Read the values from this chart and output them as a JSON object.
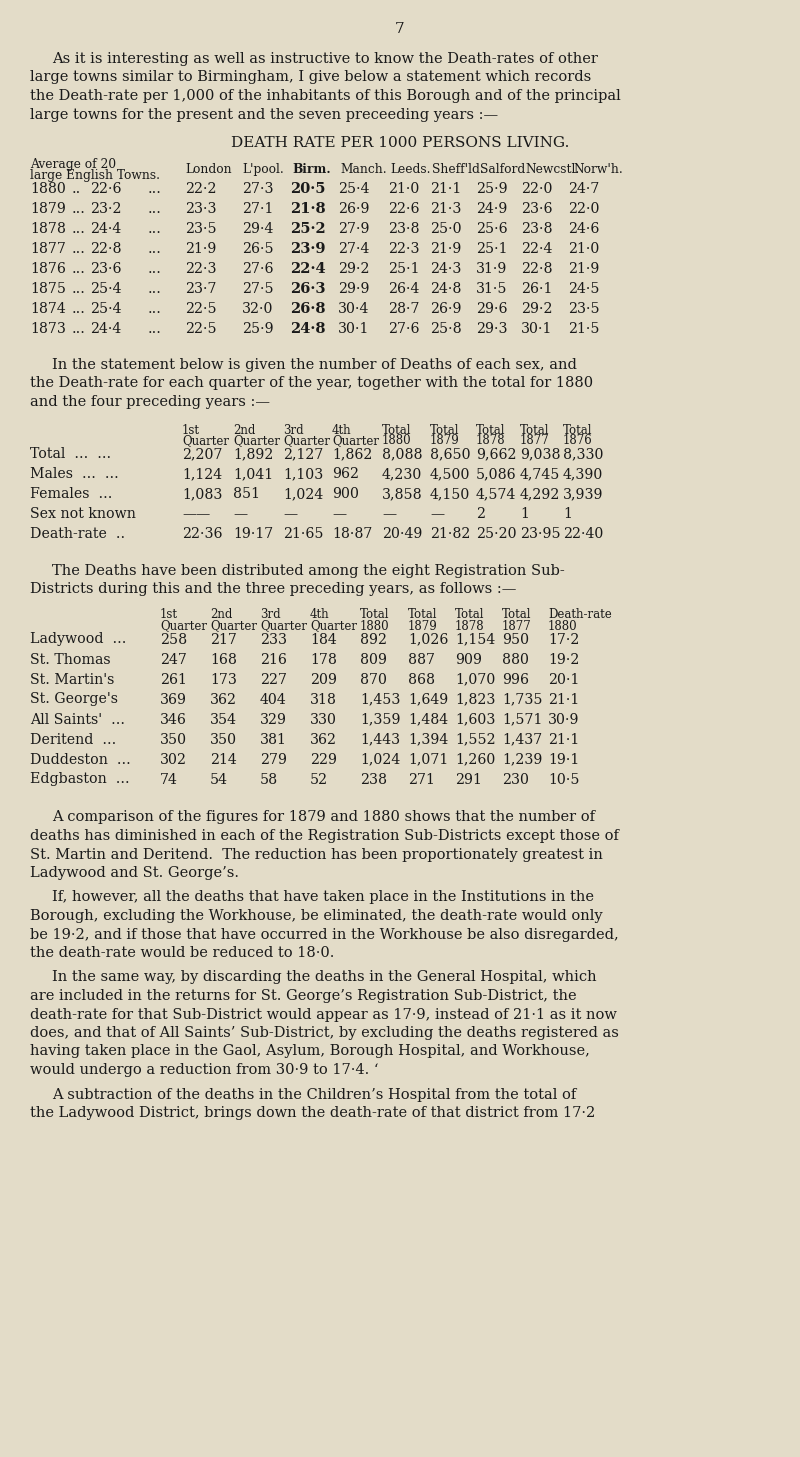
{
  "background_color": "#e3dcc8",
  "text_color": "#1a1a1a",
  "page_number": "7",
  "table1_title": "DEATH RATE PER 1000 PERSONS LIVING.",
  "table1_rows": [
    [
      "1880",
      "..",
      "22·6",
      "...",
      "22·2",
      "27·3",
      "20·5",
      "25·4",
      "21·0",
      "21·1",
      "25·9",
      "22·0",
      "24·7"
    ],
    [
      "1879",
      "...",
      "23·2",
      "...",
      "23·3",
      "27·1",
      "21·8",
      "26·9",
      "22·6",
      "21·3",
      "24·9",
      "23·6",
      "22·0"
    ],
    [
      "1878",
      "...",
      "24·4",
      "...",
      "23·5",
      "29·4",
      "25·2",
      "27·9",
      "23·8",
      "25·0",
      "25·6",
      "23·8",
      "24·6"
    ],
    [
      "1877",
      "...",
      "22·8",
      "...",
      "21·9",
      "26·5",
      "23·9",
      "27·4",
      "22·3",
      "21·9",
      "25·1",
      "22·4",
      "21·0"
    ],
    [
      "1876",
      "...",
      "23·6",
      "...",
      "22·3",
      "27·6",
      "22·4",
      "29·2",
      "25·1",
      "24·3",
      "31·9",
      "22·8",
      "21·9"
    ],
    [
      "1875",
      "...",
      "25·4",
      "...",
      "23·7",
      "27·5",
      "26·3",
      "29·9",
      "26·4",
      "24·8",
      "31·5",
      "26·1",
      "24·5"
    ],
    [
      "1874",
      "...",
      "25·4",
      "...",
      "22·5",
      "32·0",
      "26·8",
      "30·4",
      "28·7",
      "26·9",
      "29·6",
      "29·2",
      "23·5"
    ],
    [
      "1873",
      "...",
      "24·4",
      "...",
      "22·5",
      "25·9",
      "24·8",
      "30·1",
      "27·6",
      "25·8",
      "29·3",
      "30·1",
      "21·5"
    ]
  ],
  "table2_rows": [
    [
      "Total  ...  ...",
      "2,207",
      "1,892",
      "2,127",
      "1,862",
      "8,088",
      "8,650",
      "9,662",
      "9,038",
      "8,330"
    ],
    [
      "Males  ...  ...",
      "1,124",
      "1,041",
      "1,103",
      "962",
      "4,230",
      "4,500",
      "5,086",
      "4,745",
      "4,390"
    ],
    [
      "Females  ...",
      "1,083",
      "851",
      "1,024",
      "900",
      "3,858",
      "4,150",
      "4,574",
      "4,292",
      "3,939"
    ],
    [
      "Sex not known",
      "——",
      "—",
      "—",
      "—",
      "—",
      "—",
      "2",
      "1",
      "1"
    ],
    [
      "Death-rate  ..",
      "22·36",
      "19·17",
      "21·65",
      "18·87",
      "20·49",
      "21·82",
      "25·20",
      "23·95",
      "22·40"
    ]
  ],
  "table3_rows": [
    [
      "Ladywood  ...",
      "258",
      "217",
      "233",
      "184",
      "892",
      "1,026",
      "1,154",
      "950",
      "17·2"
    ],
    [
      "St. Thomas",
      "247",
      "168",
      "216",
      "178",
      "809",
      "887",
      "909",
      "880",
      "19·2"
    ],
    [
      "St. Martin's",
      "261",
      "173",
      "227",
      "209",
      "870",
      "868",
      "1,070",
      "996",
      "20·1"
    ],
    [
      "St. George's",
      "369",
      "362",
      "404",
      "318",
      "1,453",
      "1,649",
      "1,823",
      "1,735",
      "21·1"
    ],
    [
      "All Saints'  ...",
      "346",
      "354",
      "329",
      "330",
      "1,359",
      "1,484",
      "1,603",
      "1,571",
      "30·9"
    ],
    [
      "Deritend  ...",
      "350",
      "350",
      "381",
      "362",
      "1,443",
      "1,394",
      "1,552",
      "1,437",
      "21·1"
    ],
    [
      "Duddeston  ...",
      "302",
      "214",
      "279",
      "229",
      "1,024",
      "1,071",
      "1,260",
      "1,239",
      "19·1"
    ],
    [
      "Edgbaston  ...",
      "74",
      "54",
      "58",
      "52",
      "238",
      "271",
      "291",
      "230",
      "10·5"
    ]
  ],
  "intro_lines": [
    "As it is interesting as well as instructive to know the Death-rates of other",
    "large towns similar to Birmingham, I give below a statement which records",
    "the Death-rate per 1,000 of the inhabitants of this Borough and of the principal",
    "large towns for the present and the seven preceeding years :—"
  ],
  "para2_lines": [
    "In the statement below is given the number of Deaths of each sex, and",
    "the Death-rate for each quarter of the year, together with the total for 1880",
    "and the four preceding years :—"
  ],
  "para3_lines": [
    "The Deaths have been distributed among the eight Registration Sub-",
    "Districts during this and the three preceding years, as follows :—"
  ],
  "para4_lines": [
    "A comparison of the figures for 1879 and 1880 shows that the number of",
    "deaths has diminished in each of the Registration Sub-Districts except those of",
    "St. Martin and Deritend.  The reduction has been proportionately greatest in",
    "Ladywood and St. George’s."
  ],
  "para5_lines": [
    "If, however, all the deaths that have taken place in the Institutions in the",
    "Borough, excluding the Workhouse, be eliminated, the death-rate would only",
    "be 19·2, and if those that have occurred in the Workhouse be also disregarded,",
    "the death-rate would be reduced to 18·0."
  ],
  "para6_lines": [
    "In the same way, by discarding the deaths in the General Hospital, which",
    "are included in the returns for St. George’s Registration Sub-District, the",
    "death-rate for that Sub-District would appear as 17·9, instead of 21·1 as it now",
    "does, and that of All Saints’ Sub-District, by excluding the deaths registered as",
    "having taken place in the Gaol, Asylum, Borough Hospital, and Workhouse,",
    "would undergo a reduction from 30·9 to 17·4. ‘"
  ],
  "para7_lines": [
    "A subtraction of the deaths in the Children’s Hospital from the total of",
    "the Ladywood District, brings down the death-rate of that district from 17·2"
  ]
}
